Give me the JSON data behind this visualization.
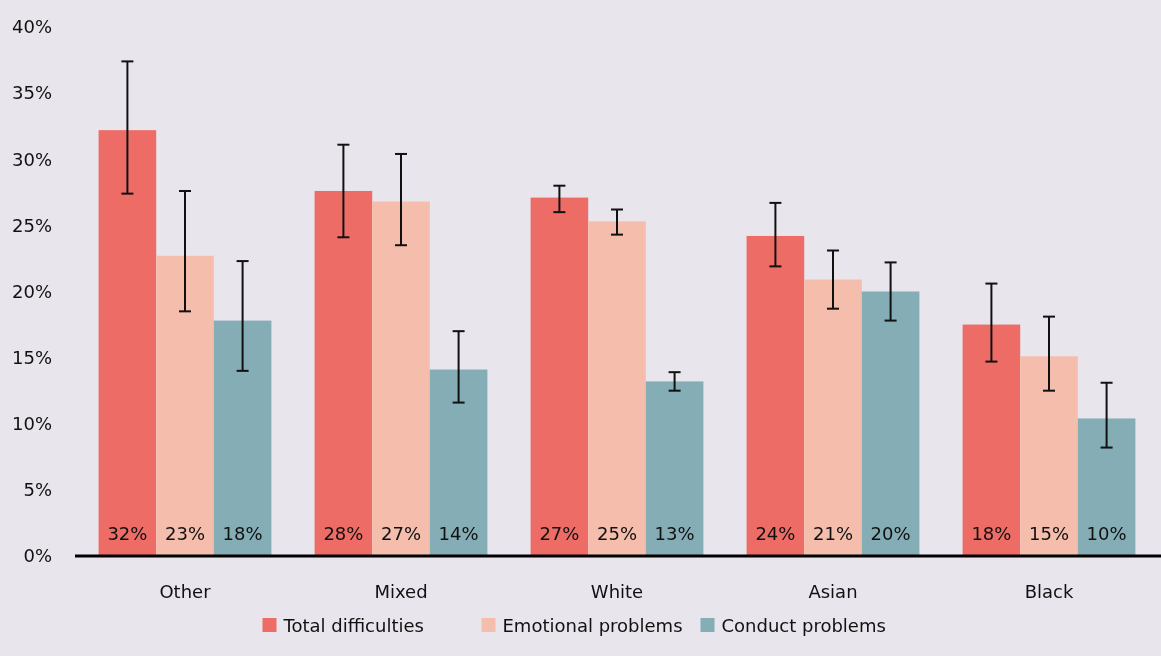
{
  "chart_data": {
    "type": "bar",
    "categories": [
      "Other",
      "Mixed",
      "White",
      "Asian",
      "Black"
    ],
    "series": [
      {
        "name": "Total difficulties",
        "color": "#ee6c66",
        "values": [
          32.2,
          27.6,
          27.1,
          24.2,
          17.5
        ],
        "value_labels": [
          "32%",
          "28%",
          "27%",
          "24%",
          "18%"
        ],
        "errors": [
          [
            27.4,
            37.4
          ],
          [
            24.1,
            31.1
          ],
          [
            26.0,
            28.0
          ],
          [
            21.9,
            26.7
          ],
          [
            14.7,
            20.6
          ]
        ]
      },
      {
        "name": "Emotional problems",
        "color": "#f5bdab",
        "values": [
          22.7,
          26.8,
          25.3,
          20.9,
          15.1
        ],
        "value_labels": [
          "23%",
          "27%",
          "25%",
          "21%",
          "15%"
        ],
        "errors": [
          [
            18.5,
            27.6
          ],
          [
            23.5,
            30.4
          ],
          [
            24.3,
            26.2
          ],
          [
            18.7,
            23.1
          ],
          [
            12.5,
            18.1
          ]
        ]
      },
      {
        "name": "Conduct problems",
        "color": "#84adb5",
        "values": [
          17.8,
          14.1,
          13.2,
          20.0,
          10.4
        ],
        "value_labels": [
          "18%",
          "14%",
          "13%",
          "20%",
          "10%"
        ],
        "errors": [
          [
            14.0,
            22.3
          ],
          [
            11.6,
            17.0
          ],
          [
            12.5,
            13.9
          ],
          [
            17.8,
            22.2
          ],
          [
            8.2,
            13.1
          ]
        ]
      }
    ],
    "ylim": [
      0,
      40
    ],
    "yticks": [
      {
        "value": 0,
        "label": "0%"
      },
      {
        "value": 5,
        "label": "5%"
      },
      {
        "value": 10,
        "label": "10%"
      },
      {
        "value": 15,
        "label": "15%"
      },
      {
        "value": 20,
        "label": "20%"
      },
      {
        "value": 25,
        "label": "25%"
      },
      {
        "value": 30,
        "label": "30%"
      },
      {
        "value": 35,
        "label": "35%"
      },
      {
        "value": 40,
        "label": "40%"
      }
    ],
    "grid": false,
    "legend": "bottom"
  }
}
